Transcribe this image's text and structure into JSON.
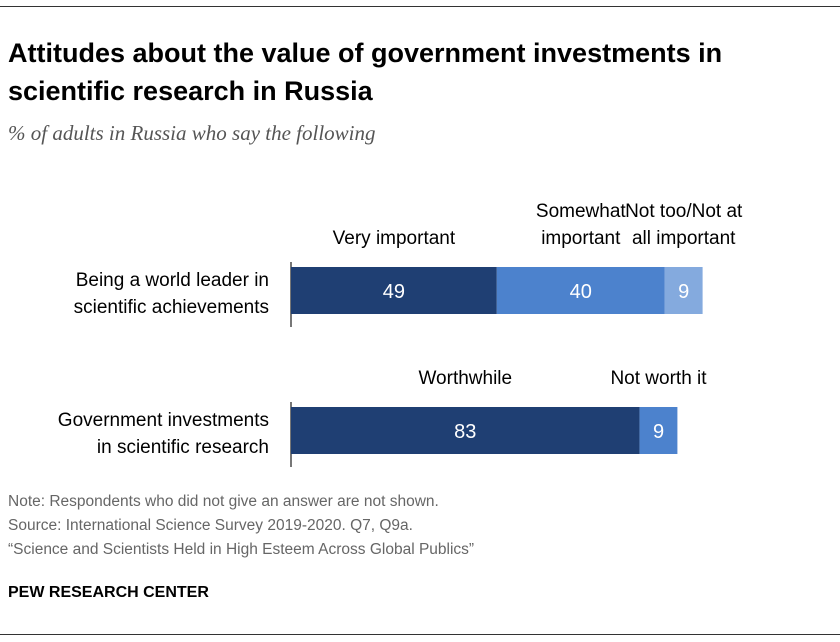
{
  "title": "Attitudes about the value of government investments in scientific research in Russia",
  "subtitle": "% of adults in Russia who say the following",
  "notes": [
    "Note: Respondents who did not give an answer are not shown.",
    "Source: International Science Survey 2019-2020. Q7, Q9a.",
    "“Science and Scientists Held in High Esteem Across Global Publics”"
  ],
  "brand": "PEW RESEARCH CENTER",
  "chart_data": {
    "type": "bar",
    "orientation": "horizontal-stacked",
    "xlim": [
      0,
      100
    ],
    "rows": [
      {
        "label": [
          "Being a world leader in",
          "scientific achievements"
        ],
        "segments": [
          {
            "name": [
              "Very important"
            ],
            "value": 49,
            "color": "#1f3f73"
          },
          {
            "name": [
              "Somewhat",
              "important"
            ],
            "value": 40,
            "color": "#4c82cd"
          },
          {
            "name": [
              "Not too/Not at",
              "all important"
            ],
            "value": 9,
            "color": "#84aade"
          }
        ]
      },
      {
        "label": [
          "Government investments",
          "in scientific research"
        ],
        "segments": [
          {
            "name": [
              "Worthwhile"
            ],
            "value": 83,
            "color": "#1f3f73"
          },
          {
            "name": [
              "Not worth it"
            ],
            "value": 9,
            "color": "#4c82cd"
          }
        ]
      }
    ]
  }
}
